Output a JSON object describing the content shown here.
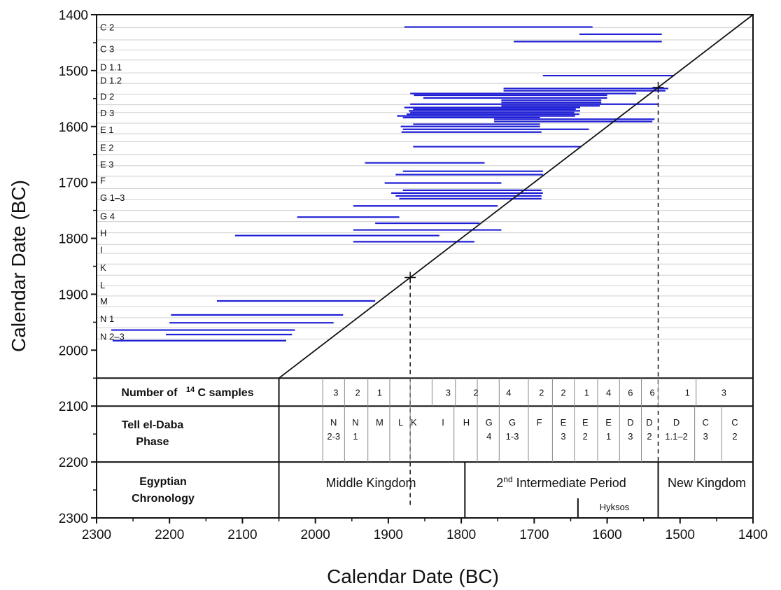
{
  "chart_data": {
    "type": "range",
    "xlabel": "Calendar Date (BC)",
    "ylabel": "Calendar Date (BC)",
    "xlim": [
      2300,
      1400
    ],
    "ylim": [
      1400,
      2300
    ],
    "x_ticks": [
      2300,
      2200,
      2100,
      2000,
      1900,
      1800,
      1700,
      1600,
      1500,
      1400
    ],
    "y_ticks": [
      1400,
      1500,
      1600,
      1700,
      1800,
      1900,
      2000,
      2100,
      2200,
      2300
    ],
    "diagonal": {
      "from": [
        2050,
        2050
      ],
      "to": [
        1400,
        1400
      ]
    },
    "markers": [
      {
        "x": 1870,
        "y": 1870
      },
      {
        "x": 1530,
        "y": 1530
      }
    ],
    "dashed_lines": [
      {
        "x": 1870,
        "y_from": 1870,
        "y_to": 2280
      },
      {
        "x": 1530,
        "y_from": 1530,
        "y_to": 2200
      }
    ],
    "phase_rows": [
      {
        "label": "C 2",
        "y": 1422
      },
      {
        "label": "C 3",
        "y": 1461
      },
      {
        "label": "D 1.1",
        "y": 1493
      },
      {
        "label": "D 1.2",
        "y": 1517
      },
      {
        "label": "D 2",
        "y": 1546
      },
      {
        "label": "D 3",
        "y": 1575
      },
      {
        "label": "E 1",
        "y": 1605
      },
      {
        "label": "E 2",
        "y": 1637
      },
      {
        "label": "E 3",
        "y": 1667
      },
      {
        "label": "F",
        "y": 1696
      },
      {
        "label": "G 1–3",
        "y": 1727
      },
      {
        "label": "G 4",
        "y": 1760
      },
      {
        "label": "H",
        "y": 1790
      },
      {
        "label": "I",
        "y": 1820
      },
      {
        "label": "K",
        "y": 1852
      },
      {
        "label": "L",
        "y": 1883
      },
      {
        "label": "M",
        "y": 1912
      },
      {
        "label": "N 1",
        "y": 1943
      },
      {
        "label": "N 2–3",
        "y": 1975
      }
    ],
    "row_lines": [
      1423,
      1445,
      1463,
      1481,
      1504,
      1523,
      1542,
      1561,
      1575,
      1594,
      1613,
      1627,
      1650,
      1670,
      1689,
      1711,
      1731,
      1750,
      1770,
      1790,
      1811,
      1827,
      1846,
      1866,
      1885,
      1903,
      1922,
      1942,
      1960,
      1980
    ],
    "series": [
      {
        "values": [
          [
            1878,
            1620,
            1422
          ],
          [
            1638,
            1525,
            1435
          ],
          [
            1728,
            1525,
            1448
          ],
          [
            1688,
            1508,
            1509
          ],
          [
            1742,
            1516,
            1532
          ],
          [
            1742,
            1520,
            1536
          ],
          [
            1870,
            1560,
            1541
          ],
          [
            1865,
            1600,
            1544
          ],
          [
            1852,
            1600,
            1549
          ],
          [
            1745,
            1608,
            1553
          ],
          [
            1745,
            1608,
            1557
          ],
          [
            1870,
            1530,
            1560
          ],
          [
            1745,
            1610,
            1563
          ],
          [
            1878,
            1637,
            1566
          ],
          [
            1866,
            1643,
            1569
          ],
          [
            1872,
            1637,
            1572
          ],
          [
            1870,
            1645,
            1575
          ],
          [
            1875,
            1638,
            1578
          ],
          [
            1888,
            1644,
            1581
          ],
          [
            1880,
            1692,
            1584
          ],
          [
            1755,
            1535,
            1587
          ],
          [
            1755,
            1538,
            1591
          ],
          [
            1866,
            1692,
            1596
          ],
          [
            1883,
            1692,
            1600
          ],
          [
            1880,
            1625,
            1605
          ],
          [
            1882,
            1690,
            1610
          ],
          [
            1866,
            1635,
            1636
          ],
          [
            1932,
            1768,
            1665
          ],
          [
            1880,
            1688,
            1680
          ],
          [
            1890,
            1688,
            1686
          ],
          [
            1905,
            1745,
            1701
          ],
          [
            1880,
            1690,
            1714
          ],
          [
            1896,
            1688,
            1719
          ],
          [
            1890,
            1690,
            1724
          ],
          [
            1885,
            1690,
            1729
          ],
          [
            1948,
            1750,
            1742
          ],
          [
            2025,
            1885,
            1762
          ],
          [
            1918,
            1775,
            1773
          ],
          [
            1948,
            1745,
            1785
          ],
          [
            2110,
            1830,
            1795
          ],
          [
            1948,
            1782,
            1806
          ],
          [
            2135,
            1918,
            1912
          ],
          [
            2198,
            1962,
            1937
          ],
          [
            2200,
            1975,
            1951
          ],
          [
            2280,
            2028,
            1964
          ],
          [
            2205,
            2032,
            1972
          ],
          [
            2278,
            2040,
            1983
          ]
        ]
      }
    ],
    "sample_counts": [
      {
        "text": "3",
        "x": 1972
      },
      {
        "text": "2",
        "x": 1942
      },
      {
        "text": "1",
        "x": 1912
      },
      {
        "text": "3",
        "x": 1818
      },
      {
        "text": "2",
        "x": 1780
      },
      {
        "text": "4",
        "x": 1735
      },
      {
        "text": "2",
        "x": 1690
      },
      {
        "text": "2",
        "x": 1660
      },
      {
        "text": "1",
        "x": 1628
      },
      {
        "text": "4",
        "x": 1598
      },
      {
        "text": "6",
        "x": 1568
      },
      {
        "text": "6",
        "x": 1538
      },
      {
        "text": "1",
        "x": 1490
      },
      {
        "text": "3",
        "x": 1440
      }
    ],
    "sample_dividers": [
      1990,
      1960,
      1928,
      1898,
      1870,
      1840,
      1808,
      1778,
      1748,
      1708,
      1675,
      1645,
      1613,
      1583,
      1553,
      1530,
      1478
    ],
    "phases": [
      {
        "lines": [
          "N",
          "2-3"
        ],
        "x": 1975
      },
      {
        "lines": [
          "N",
          "1"
        ],
        "x": 1945
      },
      {
        "lines": [
          "M"
        ],
        "x": 1912
      },
      {
        "lines": [
          "L"
        ],
        "x": 1883
      },
      {
        "lines": [
          "K"
        ],
        "x": 1865
      },
      {
        "lines": [
          "I"
        ],
        "x": 1825
      },
      {
        "lines": [
          "H"
        ],
        "x": 1793
      },
      {
        "lines": [
          "G",
          "4"
        ],
        "x": 1762
      },
      {
        "lines": [
          "G",
          "1-3"
        ],
        "x": 1730
      },
      {
        "lines": [
          "F"
        ],
        "x": 1693
      },
      {
        "lines": [
          "E",
          "3"
        ],
        "x": 1660
      },
      {
        "lines": [
          "E",
          "2"
        ],
        "x": 1630
      },
      {
        "lines": [
          "E",
          "1"
        ],
        "x": 1598
      },
      {
        "lines": [
          "D",
          "3"
        ],
        "x": 1568
      },
      {
        "lines": [
          "D",
          "2"
        ],
        "x": 1542
      },
      {
        "lines": [
          "D",
          "1.1–2"
        ],
        "x": 1505
      },
      {
        "lines": [
          "C",
          "3"
        ],
        "x": 1465
      },
      {
        "lines": [
          "C",
          "2"
        ],
        "x": 1425
      }
    ],
    "phase_dividers": [
      1990,
      1960,
      1928,
      1898,
      1870,
      1810,
      1778,
      1748,
      1708,
      1675,
      1645,
      1613,
      1583,
      1553,
      1480,
      1443
    ]
  },
  "table": {
    "samples_header": "Number of",
    "samples_header_iso": "14",
    "samples_header_tail": "C samples",
    "phase_header_1": "Tell el-Daba",
    "phase_header_2": "Phase",
    "chrono_header_1": "Egyptian",
    "chrono_header_2": "Chronology",
    "middle_kingdom": "Middle Kingdom",
    "intermediate_ord": "2",
    "intermediate_sup": "nd",
    "intermediate_rest": " Intermediate Period",
    "hyksos": "Hyksos",
    "new_kingdom": "New Kingdom"
  },
  "colors": {
    "range": "#1f1fd6",
    "axis": "#111111",
    "grid": "#cfcfcf"
  }
}
